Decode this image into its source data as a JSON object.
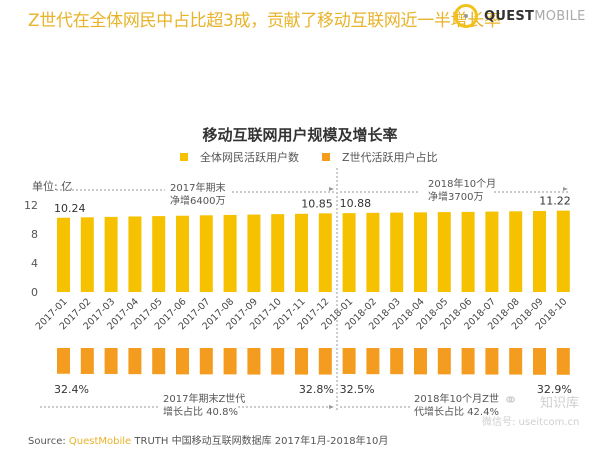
{
  "headline": "Z世代在全体网民中占比超3成，贡献了移动互联网近一半增长率",
  "logo": {
    "bold": "QUEST",
    "light": "MOBILE",
    "icon": "questmobile-logo-icon"
  },
  "colors": {
    "users": "#f6c200",
    "share": "#f39c1f",
    "headline": "#e8b32a",
    "grid_dash": "#999999"
  },
  "chart_data": {
    "type": "bar",
    "title": "移动互联网用户规模及增长率",
    "legend": [
      "全体网民活跃用户数",
      "Z世代活跃用户占比"
    ],
    "legend_position": "top",
    "unit_label": "单位: 亿",
    "categories": [
      "2017-01",
      "2017-02",
      "2017-03",
      "2017-04",
      "2017-05",
      "2017-06",
      "2017-07",
      "2017-08",
      "2017-09",
      "2017-10",
      "2017-11",
      "2017-12",
      "2018-01",
      "2018-02",
      "2018-03",
      "2018-04",
      "2018-05",
      "2018-06",
      "2018-07",
      "2018-08",
      "2018-09",
      "2018-10"
    ],
    "series": [
      {
        "name": "全体网民活跃用户数",
        "unit": "亿",
        "values": [
          10.24,
          10.3,
          10.36,
          10.42,
          10.47,
          10.52,
          10.58,
          10.63,
          10.68,
          10.74,
          10.79,
          10.85,
          10.88,
          10.92,
          10.95,
          10.98,
          11.02,
          11.05,
          11.09,
          11.13,
          11.17,
          11.22
        ],
        "labeled": {
          "0": "10.24",
          "11": "10.85",
          "12": "10.88",
          "21": "11.22"
        }
      },
      {
        "name": "Z世代活跃用户占比",
        "unit": "%",
        "values": [
          32.4,
          32.5,
          32.5,
          32.6,
          32.6,
          32.7,
          32.7,
          32.7,
          32.8,
          32.8,
          32.8,
          32.8,
          32.5,
          32.6,
          32.6,
          32.7,
          32.7,
          32.7,
          32.8,
          32.8,
          32.9,
          32.9
        ],
        "labeled": {
          "0": "32.4%",
          "11": "32.8%",
          "12": "32.5%",
          "21": "32.9%"
        }
      }
    ],
    "yticks": [
      0,
      4,
      8,
      12
    ],
    "ylim": [
      0,
      12
    ],
    "annotations": {
      "users_2017": [
        "2017年期末",
        "净增6400万"
      ],
      "users_2018": [
        "2018年10个月",
        "净增3700万"
      ],
      "share_2017": [
        "2017年期末Z世代",
        "增长占比 40.8%"
      ],
      "share_2018": [
        "2018年10个月Z世",
        "代增长占比 42.4%"
      ]
    }
  },
  "source": {
    "prefix": "Source:",
    "brand": "QuestMobile",
    "rest": "TRUTH 中国移动互联网数据库 2017年1月-2018年10月"
  },
  "watermark": {
    "name": "知识库",
    "account": "微信号: useitcom.cn",
    "icon": "wechat-icon"
  }
}
